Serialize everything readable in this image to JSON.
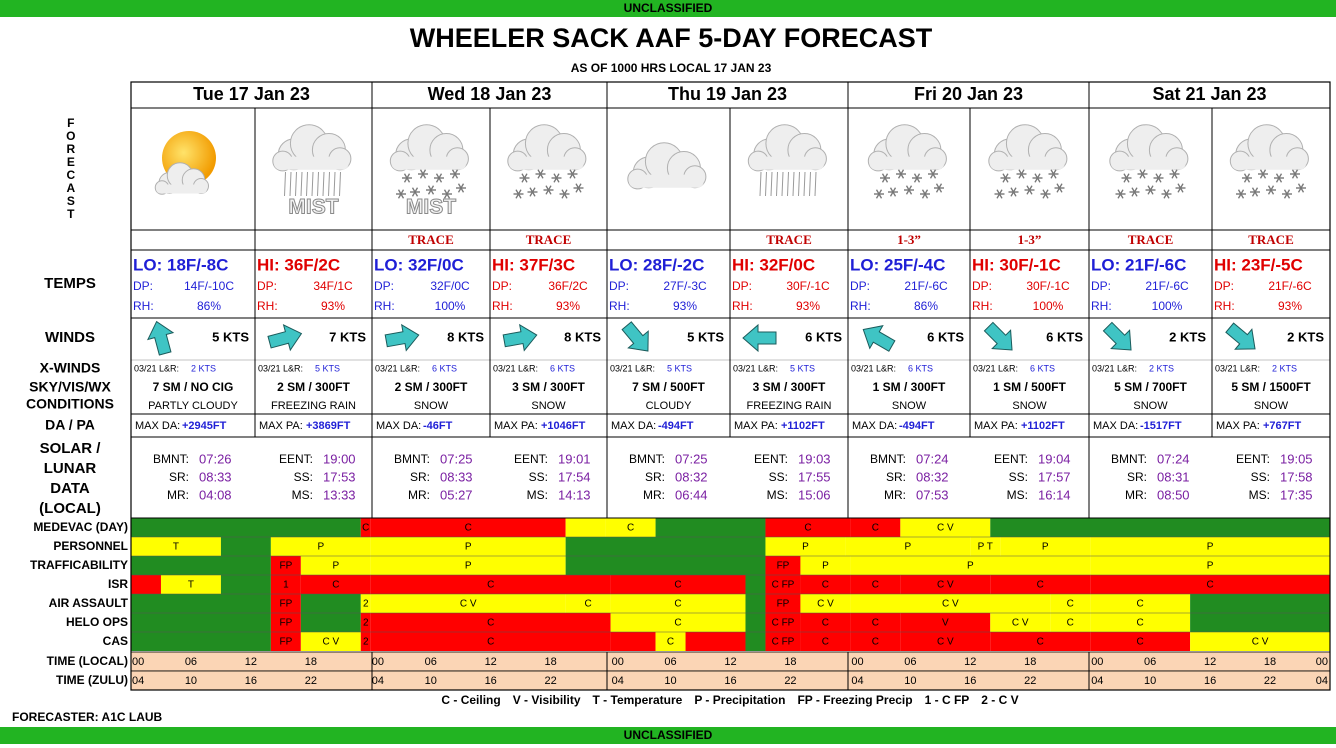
{
  "banner_top": "UNCLASSIFIED",
  "title": "WHEELER SACK AAF 5-DAY FORECAST",
  "subtitle": "AS OF 1000 HRS LOCAL 17 JAN 23",
  "row_labels": {
    "forecast": "FORECAST",
    "temps": "TEMPS",
    "winds": "WINDS",
    "xwinds": "X-WINDS",
    "sky": [
      "SKY/VIS/WX",
      "CONDITIONS"
    ],
    "da": "DA / PA",
    "solar": [
      "SOLAR /",
      "LUNAR",
      "DATA",
      "(LOCAL)"
    ]
  },
  "labels": {
    "dp": "DP:",
    "rh": "RH:",
    "xwind": "03/21 L&R:"
  },
  "solar_labels": [
    [
      "BMNT:",
      "SR:",
      "MR:"
    ],
    [
      "EENT:",
      "SS:",
      "MS:"
    ]
  ],
  "days": [
    {
      "date": "Tue 17 Jan 23",
      "periods": [
        {
          "icon": "partly-cloudy",
          "temp": "LO: 18F/-8C",
          "dp": "14F/-10C",
          "rh": "86%",
          "wind_arrow_deg": 345,
          "wind": "5 KTS",
          "xwind": "2 KTS",
          "sky": "7 SM / NO CIG",
          "wx": "PARTLY CLOUDY",
          "da_label": "MAX DA:",
          "da": "+2945FT",
          "solar": [
            "07:26",
            "08:33",
            "04:08"
          ]
        },
        {
          "icon": "rain",
          "icon_text": "MIST",
          "temp": "HI: 36F/2C",
          "dp": "34F/1C",
          "rh": "93%",
          "wind_arrow_deg": 75,
          "wind": "7 KTS",
          "xwind": "5 KTS",
          "sky": "2 SM / 300FT",
          "wx": "FREEZING RAIN",
          "da_label": "MAX PA:",
          "da": "+3869FT",
          "solar": [
            "19:00",
            "17:53",
            "13:33"
          ]
        }
      ]
    },
    {
      "date": "Wed 18 Jan 23",
      "periods": [
        {
          "icon": "snow",
          "icon_text": "MIST",
          "precip": "TRACE",
          "temp": "LO: 32F/0C",
          "dp": "32F/0C",
          "rh": "100%",
          "wind_arrow_deg": 80,
          "wind": "8 KTS",
          "xwind": "6 KTS",
          "sky": "2 SM / 300FT",
          "wx": "SNOW",
          "da_label": "MAX DA:",
          "da": "-46FT",
          "solar": [
            "07:25",
            "08:33",
            "05:27"
          ]
        },
        {
          "icon": "snow",
          "precip": "TRACE",
          "temp": "HI: 37F/3C",
          "dp": "36F/2C",
          "rh": "93%",
          "wind_arrow_deg": 80,
          "wind": "8 KTS",
          "xwind": "6 KTS",
          "sky": "3 SM / 300FT",
          "wx": "SNOW",
          "da_label": "MAX PA:",
          "da": "+1046FT",
          "solar": [
            "19:01",
            "17:54",
            "14:13"
          ]
        }
      ]
    },
    {
      "date": "Thu 19 Jan 23",
      "periods": [
        {
          "icon": "cloudy",
          "temp": "LO: 28F/-2C",
          "dp": "27F/-3C",
          "rh": "93%",
          "wind_arrow_deg": 140,
          "wind": "5 KTS",
          "xwind": "5 KTS",
          "sky": "7 SM / 500FT",
          "wx": "CLOUDY",
          "da_label": "MAX DA:",
          "da": "-494FT",
          "solar": [
            "07:25",
            "08:32",
            "06:44"
          ]
        },
        {
          "icon": "rain",
          "precip": "TRACE",
          "temp": "HI: 32F/0C",
          "dp": "30F/-1C",
          "rh": "93%",
          "wind_arrow_deg": 270,
          "wind": "6 KTS",
          "xwind": "5 KTS",
          "sky": "3 SM / 300FT",
          "wx": "FREEZING RAIN",
          "da_label": "MAX PA:",
          "da": "+1102FT",
          "solar": [
            "19:03",
            "17:55",
            "15:06"
          ]
        }
      ]
    },
    {
      "date": "Fri 20 Jan 23",
      "periods": [
        {
          "icon": "snow",
          "precip": "1-3”",
          "temp": "LO: 25F/-4C",
          "dp": "21F/-6C",
          "rh": "86%",
          "wind_arrow_deg": 300,
          "wind": "6 KTS",
          "xwind": "6 KTS",
          "sky": "1 SM / 300FT",
          "wx": "SNOW",
          "da_label": "MAX DA:",
          "da": "-494FT",
          "solar": [
            "07:24",
            "08:32",
            "07:53"
          ]
        },
        {
          "icon": "snow",
          "precip": "1-3”",
          "temp": "HI: 30F/-1C",
          "dp": "30F/-1C",
          "rh": "100%",
          "wind_arrow_deg": 135,
          "wind": "6 KTS",
          "xwind": "6 KTS",
          "sky": "1 SM / 500FT",
          "wx": "SNOW",
          "da_label": "MAX PA:",
          "da": "+1102FT",
          "solar": [
            "19:04",
            "17:57",
            "16:14"
          ]
        }
      ]
    },
    {
      "date": "Sat 21 Jan 23",
      "periods": [
        {
          "icon": "snow",
          "precip": "TRACE",
          "temp": "LO: 21F/-6C",
          "dp": "21F/-6C",
          "rh": "100%",
          "wind_arrow_deg": 135,
          "wind": "2 KTS",
          "xwind": "2 KTS",
          "sky": "5 SM / 700FT",
          "wx": "SNOW",
          "da_label": "MAX DA:",
          "da": "-1517FT",
          "solar": [
            "07:24",
            "08:31",
            "08:50"
          ]
        },
        {
          "icon": "snow",
          "precip": "TRACE",
          "temp": "HI: 23F/-5C",
          "dp": "21F/-6C",
          "rh": "93%",
          "wind_arrow_deg": 130,
          "wind": "2 KTS",
          "xwind": "2 KTS",
          "sky": "5 SM / 1500FT",
          "wx": "SNOW",
          "da_label": "MAX PA:",
          "da": "+767FT",
          "solar": [
            "19:05",
            "17:58",
            "17:35"
          ]
        }
      ]
    }
  ],
  "timeline": {
    "hours_range": [
      0,
      120
    ],
    "rows": [
      {
        "label": "MEDEVAC (DAY)",
        "segments": [
          {
            "start": 0,
            "end": 23,
            "color": "#218c21"
          },
          {
            "start": 23,
            "end": 24,
            "color": "#ff0000",
            "label": "C"
          },
          {
            "start": 24,
            "end": 43.5,
            "color": "#ff0000",
            "label": "C"
          },
          {
            "start": 43.5,
            "end": 47.5,
            "color": "#ffff00"
          },
          {
            "start": 47.5,
            "end": 52.5,
            "color": "#ffff00",
            "label": "C"
          },
          {
            "start": 52.5,
            "end": 63.5,
            "color": "#218c21"
          },
          {
            "start": 63.5,
            "end": 72,
            "color": "#ff0000",
            "label": "C"
          },
          {
            "start": 72,
            "end": 77,
            "color": "#ff0000",
            "label": "C"
          },
          {
            "start": 77,
            "end": 86,
            "color": "#ffff00",
            "label": "C V"
          },
          {
            "start": 86,
            "end": 120,
            "color": "#218c21"
          }
        ]
      },
      {
        "label": "PERSONNEL",
        "segments": [
          {
            "start": 0,
            "end": 9,
            "color": "#ffff00",
            "label": "T"
          },
          {
            "start": 9,
            "end": 14,
            "color": "#218c21"
          },
          {
            "start": 14,
            "end": 24,
            "color": "#ffff00",
            "label": "P"
          },
          {
            "start": 24,
            "end": 43.5,
            "color": "#ffff00",
            "label": "P"
          },
          {
            "start": 43.5,
            "end": 63.5,
            "color": "#218c21"
          },
          {
            "start": 63.5,
            "end": 71.5,
            "color": "#ffff00",
            "label": "P"
          },
          {
            "start": 71.5,
            "end": 84,
            "color": "#ffff00",
            "label": "P"
          },
          {
            "start": 84,
            "end": 87,
            "color": "#ffff00",
            "label": "P T"
          },
          {
            "start": 87,
            "end": 96,
            "color": "#ffff00",
            "label": "P"
          },
          {
            "start": 96,
            "end": 120,
            "color": "#ffff00",
            "label": "P"
          }
        ]
      },
      {
        "label": "TRAFFICABILITY",
        "segments": [
          {
            "start": 0,
            "end": 14,
            "color": "#218c21"
          },
          {
            "start": 14,
            "end": 17,
            "color": "#ff0000",
            "label": "FP"
          },
          {
            "start": 17,
            "end": 24,
            "color": "#ffff00",
            "label": "P"
          },
          {
            "start": 24,
            "end": 43.5,
            "color": "#ffff00",
            "label": "P"
          },
          {
            "start": 43.5,
            "end": 63.5,
            "color": "#218c21"
          },
          {
            "start": 63.5,
            "end": 67,
            "color": "#ff0000",
            "label": "FP"
          },
          {
            "start": 67,
            "end": 72,
            "color": "#ffff00",
            "label": "P"
          },
          {
            "start": 72,
            "end": 96,
            "color": "#ffff00",
            "label": "P"
          },
          {
            "start": 96,
            "end": 120,
            "color": "#ffff00",
            "label": "P"
          }
        ]
      },
      {
        "label": "ISR",
        "segments": [
          {
            "start": 0,
            "end": 3,
            "color": "#ff0000"
          },
          {
            "start": 3,
            "end": 9,
            "color": "#ffff00",
            "label": "T"
          },
          {
            "start": 9,
            "end": 14,
            "color": "#218c21"
          },
          {
            "start": 14,
            "end": 17,
            "color": "#ff0000",
            "label": "1"
          },
          {
            "start": 17,
            "end": 24,
            "color": "#ff0000",
            "label": "C"
          },
          {
            "start": 24,
            "end": 48,
            "color": "#ff0000",
            "label": "C"
          },
          {
            "start": 48,
            "end": 61.5,
            "color": "#ff0000",
            "label": "C"
          },
          {
            "start": 61.5,
            "end": 63.5,
            "color": "#218c21"
          },
          {
            "start": 63.5,
            "end": 67,
            "color": "#ff0000",
            "label": "C FP"
          },
          {
            "start": 67,
            "end": 72,
            "color": "#ff0000",
            "label": "C"
          },
          {
            "start": 72,
            "end": 77,
            "color": "#ff0000",
            "label": "C"
          },
          {
            "start": 77,
            "end": 86,
            "color": "#ff0000",
            "label": "C V"
          },
          {
            "start": 86,
            "end": 96,
            "color": "#ff0000",
            "label": "C"
          },
          {
            "start": 96,
            "end": 120,
            "color": "#ff0000",
            "label": "C"
          }
        ]
      },
      {
        "label": "AIR ASSAULT",
        "segments": [
          {
            "start": 0,
            "end": 14,
            "color": "#218c21"
          },
          {
            "start": 14,
            "end": 17,
            "color": "#ff0000",
            "label": "FP"
          },
          {
            "start": 17,
            "end": 23,
            "color": "#218c21"
          },
          {
            "start": 23,
            "end": 24,
            "color": "#ffff00",
            "label": "2"
          },
          {
            "start": 24,
            "end": 43.5,
            "color": "#ffff00",
            "label": "C V"
          },
          {
            "start": 43.5,
            "end": 48,
            "color": "#ffff00",
            "label": "C"
          },
          {
            "start": 48,
            "end": 61.5,
            "color": "#ffff00",
            "label": "C"
          },
          {
            "start": 61.5,
            "end": 63.5,
            "color": "#218c21"
          },
          {
            "start": 63.5,
            "end": 67,
            "color": "#ff0000",
            "label": "FP"
          },
          {
            "start": 67,
            "end": 72,
            "color": "#ffff00",
            "label": "C V"
          },
          {
            "start": 72,
            "end": 92,
            "color": "#ffff00",
            "label": "C V"
          },
          {
            "start": 92,
            "end": 96,
            "color": "#ffff00",
            "label": "C"
          },
          {
            "start": 96,
            "end": 106,
            "color": "#ffff00",
            "label": "C"
          },
          {
            "start": 106,
            "end": 120,
            "color": "#218c21"
          }
        ]
      },
      {
        "label": "HELO OPS",
        "segments": [
          {
            "start": 0,
            "end": 14,
            "color": "#218c21"
          },
          {
            "start": 14,
            "end": 17,
            "color": "#ff0000",
            "label": "FP"
          },
          {
            "start": 17,
            "end": 23,
            "color": "#218c21"
          },
          {
            "start": 23,
            "end": 24,
            "color": "#ff0000",
            "label": "2"
          },
          {
            "start": 24,
            "end": 48,
            "color": "#ff0000",
            "label": "C"
          },
          {
            "start": 48,
            "end": 61.5,
            "color": "#ffff00",
            "label": "C"
          },
          {
            "start": 61.5,
            "end": 63.5,
            "color": "#218c21"
          },
          {
            "start": 63.5,
            "end": 67,
            "color": "#ff0000",
            "label": "C FP"
          },
          {
            "start": 67,
            "end": 72,
            "color": "#ff0000",
            "label": "C"
          },
          {
            "start": 72,
            "end": 77,
            "color": "#ff0000",
            "label": "C"
          },
          {
            "start": 77,
            "end": 86,
            "color": "#ff0000",
            "label": "V"
          },
          {
            "start": 86,
            "end": 92,
            "color": "#ffff00",
            "label": "C V"
          },
          {
            "start": 92,
            "end": 96,
            "color": "#ffff00",
            "label": "C"
          },
          {
            "start": 96,
            "end": 106,
            "color": "#ffff00",
            "label": "C"
          },
          {
            "start": 106,
            "end": 120,
            "color": "#218c21"
          }
        ]
      },
      {
        "label": "CAS",
        "segments": [
          {
            "start": 0,
            "end": 14,
            "color": "#218c21"
          },
          {
            "start": 14,
            "end": 17,
            "color": "#ff0000",
            "label": "FP"
          },
          {
            "start": 17,
            "end": 23,
            "color": "#ffff00",
            "label": "C V"
          },
          {
            "start": 23,
            "end": 24,
            "color": "#ff0000",
            "label": "2"
          },
          {
            "start": 24,
            "end": 48,
            "color": "#ff0000",
            "label": "C"
          },
          {
            "start": 48,
            "end": 52.5,
            "color": "#ff0000"
          },
          {
            "start": 52.5,
            "end": 55.5,
            "color": "#ffff00",
            "label": "C"
          },
          {
            "start": 55.5,
            "end": 61.5,
            "color": "#ff0000"
          },
          {
            "start": 61.5,
            "end": 63.5,
            "color": "#218c21"
          },
          {
            "start": 63.5,
            "end": 67,
            "color": "#ff0000",
            "label": "C FP"
          },
          {
            "start": 67,
            "end": 72,
            "color": "#ff0000",
            "label": "C"
          },
          {
            "start": 72,
            "end": 77,
            "color": "#ff0000",
            "label": "C"
          },
          {
            "start": 77,
            "end": 86,
            "color": "#ff0000",
            "label": "C V"
          },
          {
            "start": 86,
            "end": 96,
            "color": "#ff0000",
            "label": "C"
          },
          {
            "start": 96,
            "end": 106,
            "color": "#ff0000",
            "label": "C"
          },
          {
            "start": 106,
            "end": 120,
            "color": "#ffff00",
            "label": "C V"
          }
        ]
      }
    ],
    "time_rows": [
      {
        "label": "TIME (LOCAL)",
        "ticks": [
          "00",
          "06",
          "12",
          "18",
          "00",
          "06",
          "12",
          "18",
          "00",
          "06",
          "12",
          "18",
          "00",
          "06",
          "12",
          "18",
          "00",
          "06",
          "12",
          "18",
          "00"
        ]
      },
      {
        "label": "TIME (ZULU)",
        "ticks": [
          "04",
          "10",
          "16",
          "22",
          "04",
          "10",
          "16",
          "22",
          "04",
          "10",
          "16",
          "22",
          "04",
          "10",
          "16",
          "22",
          "04",
          "10",
          "16",
          "22",
          "04"
        ]
      }
    ]
  },
  "legend": [
    "C - Ceiling",
    "V - Visibility",
    "T - Temperature",
    "P - Precipitation",
    "FP - Freezing Precip",
    "1 - C FP",
    "2 - C V"
  ],
  "forecaster": "FORECASTER: A1C LAUB",
  "banner_bottom": "UNCLASSIFIED"
}
